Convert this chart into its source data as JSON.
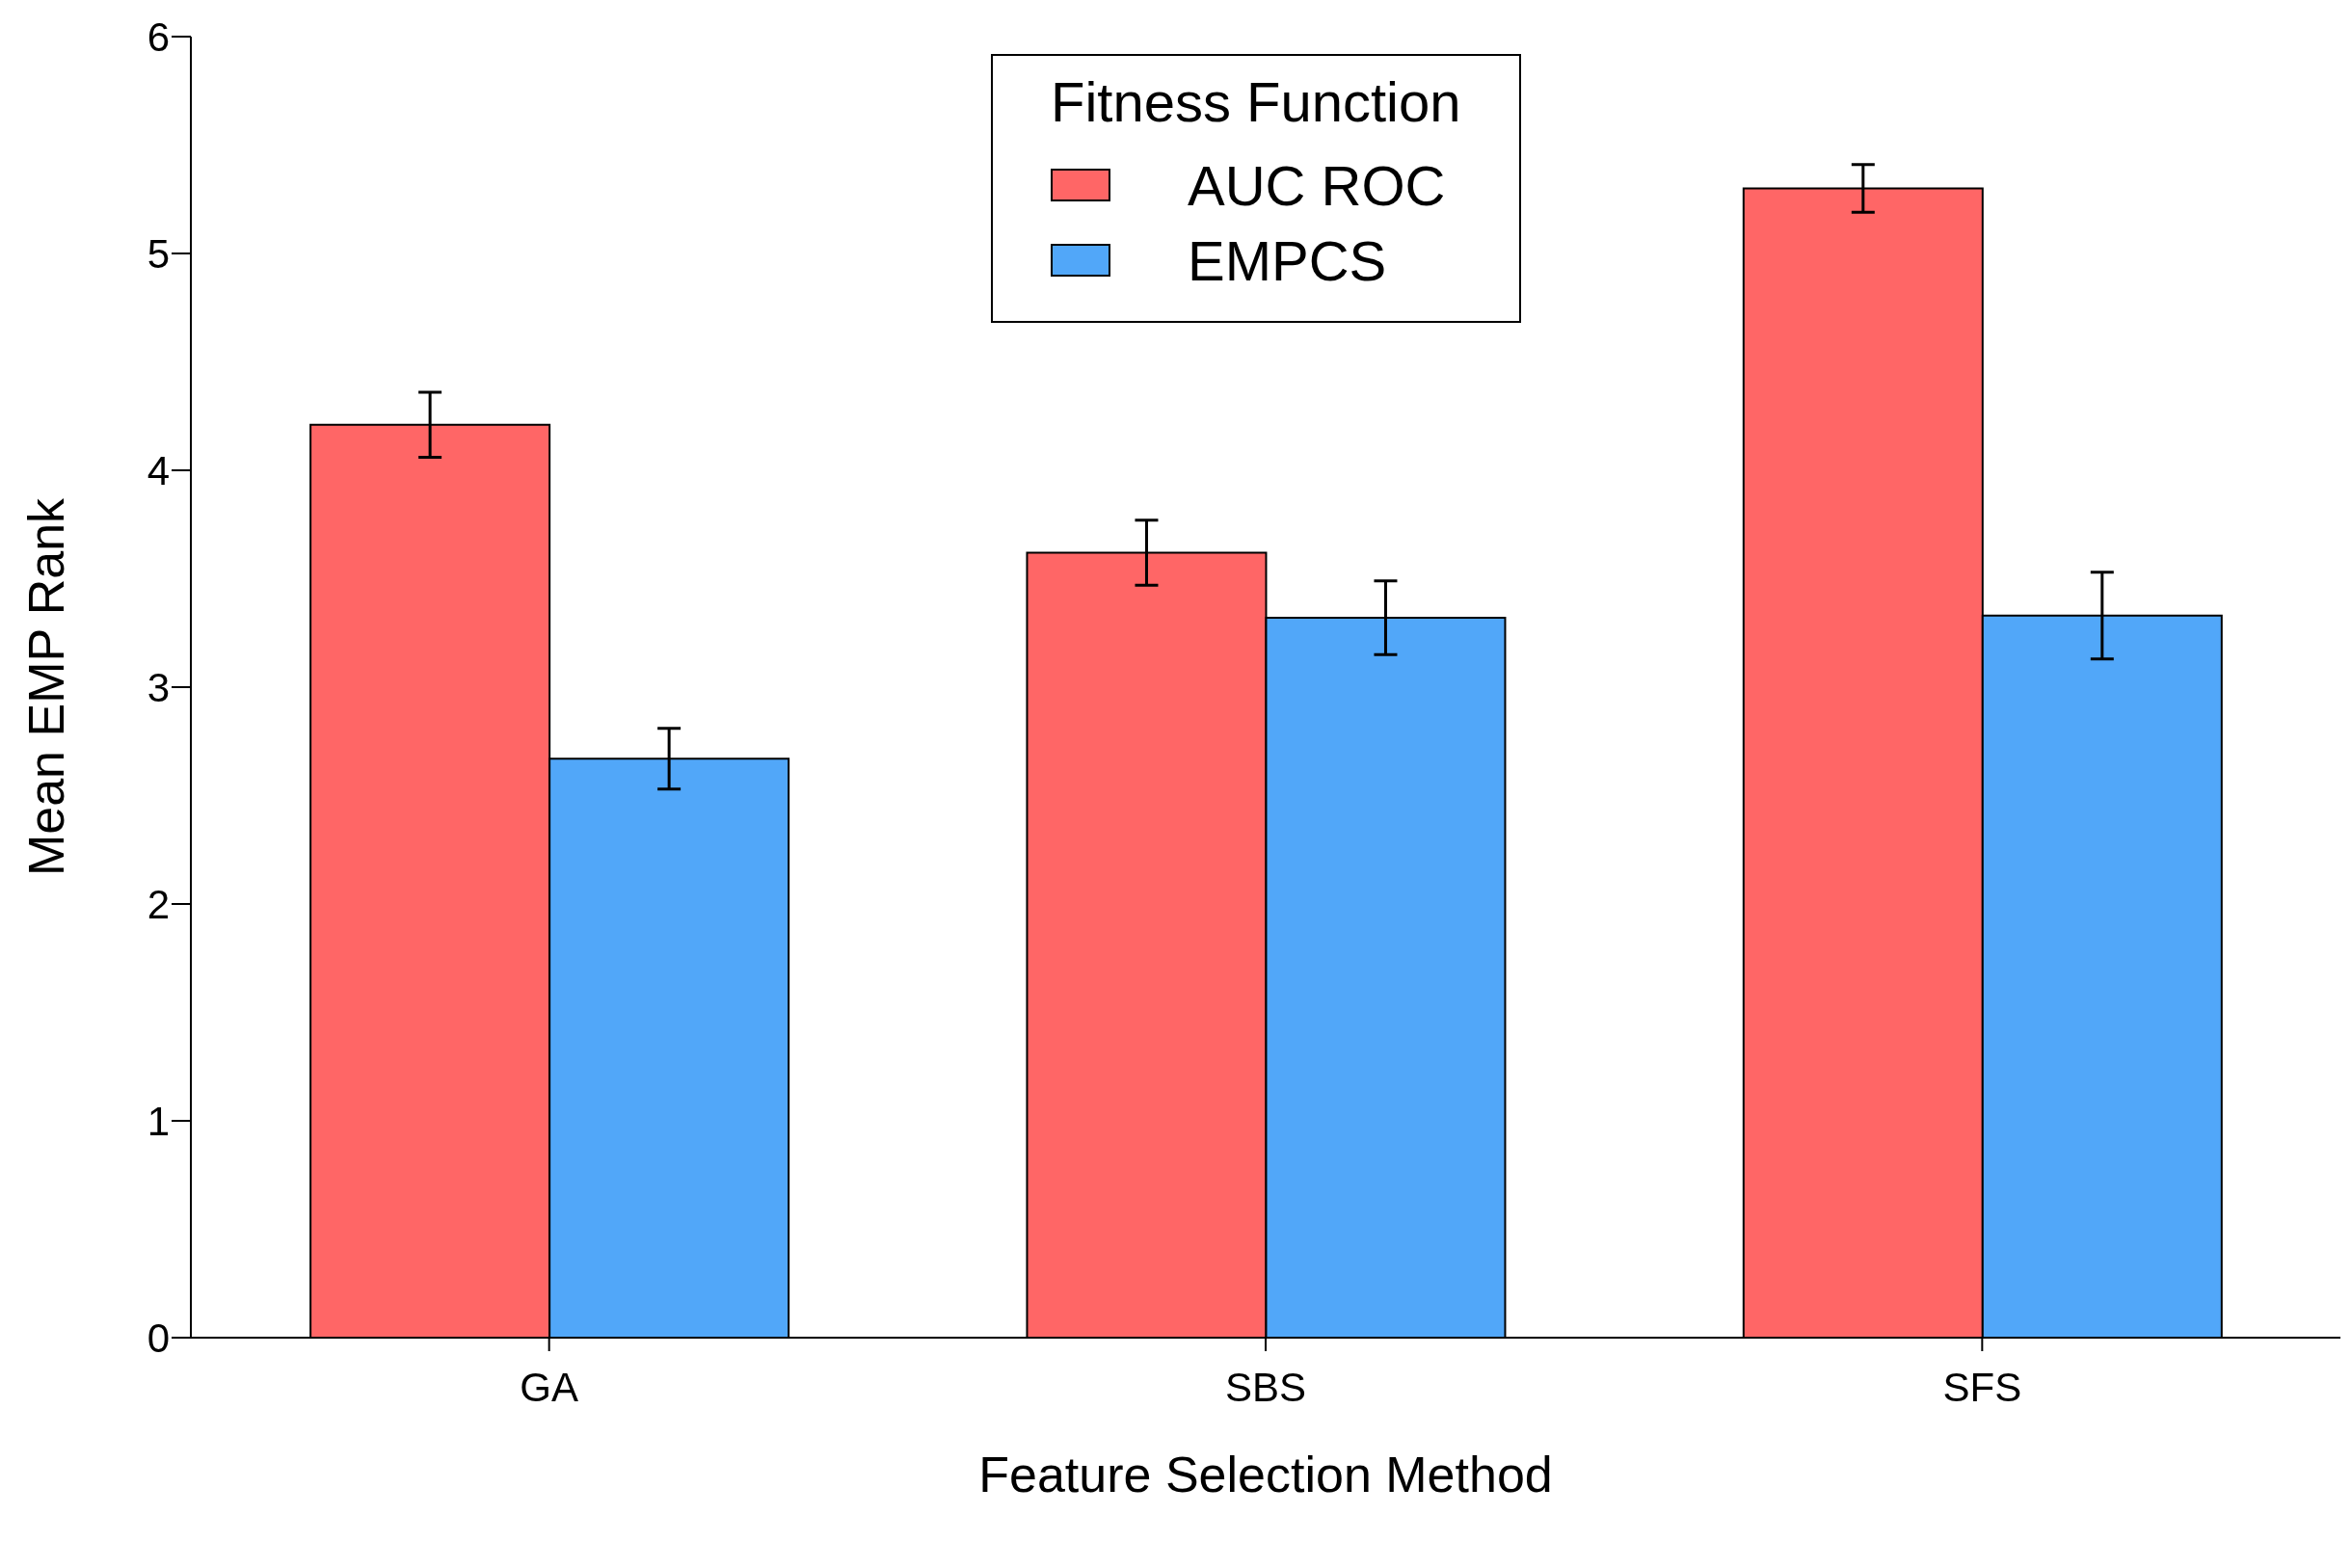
{
  "chart_data": {
    "type": "bar",
    "xlabel": "Feature Selection Method",
    "ylabel": "Mean EMP Rank",
    "legend_title": "Fitness Function",
    "categories": [
      "GA",
      "SBS",
      "SFS"
    ],
    "series": [
      {
        "name": "AUC ROC",
        "color": "#ff6666",
        "values": [
          4.21,
          3.62,
          5.3
        ],
        "errors": [
          0.15,
          0.15,
          0.11
        ]
      },
      {
        "name": "EMPCS",
        "color": "#51a7f9",
        "values": [
          2.67,
          3.32,
          3.33
        ],
        "errors": [
          0.14,
          0.17,
          0.2
        ]
      }
    ],
    "ylim": [
      0,
      6
    ],
    "yticks": [
      0,
      1,
      2,
      3,
      4,
      5,
      6
    ],
    "grid": false,
    "legend": "top"
  }
}
